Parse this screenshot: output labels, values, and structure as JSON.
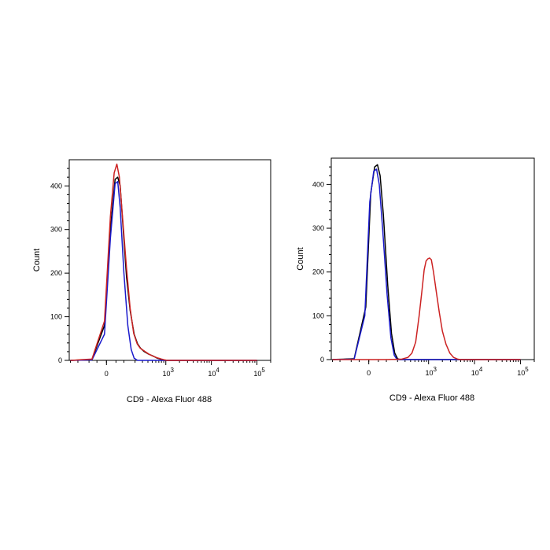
{
  "chart_data": [
    {
      "type": "line",
      "title": "",
      "xlabel": "CD9 - Alexa Fluor 488",
      "ylabel": "Count",
      "ylim": [
        0,
        460
      ],
      "yticks": [
        0,
        100,
        200,
        300,
        400
      ],
      "xscale": "biexponential",
      "xticks": [
        {
          "label": "0",
          "value": 0
        },
        {
          "label": "10",
          "sup": "3",
          "value": 1000
        },
        {
          "label": "10",
          "sup": "4",
          "value": 10000
        },
        {
          "label": "10",
          "sup": "5",
          "value": 100000
        }
      ],
      "series": [
        {
          "name": "black",
          "color": "#000000",
          "points": [
            [
              -300,
              0
            ],
            [
              -80,
              2
            ],
            [
              -10,
              80
            ],
            [
              20,
              300
            ],
            [
              45,
              415
            ],
            [
              60,
              420
            ],
            [
              75,
              400
            ],
            [
              95,
              300
            ],
            [
              120,
              190
            ],
            [
              150,
              115
            ],
            [
              190,
              60
            ],
            [
              230,
              38
            ],
            [
              270,
              28
            ],
            [
              330,
              20
            ],
            [
              420,
              14
            ],
            [
              520,
              10
            ],
            [
              650,
              5
            ],
            [
              800,
              2
            ],
            [
              950,
              0
            ],
            [
              100000,
              0
            ]
          ]
        },
        {
          "name": "blue",
          "color": "#1a1acc",
          "points": [
            [
              -300,
              0
            ],
            [
              -80,
              1
            ],
            [
              -10,
              60
            ],
            [
              20,
              280
            ],
            [
              45,
              405
            ],
            [
              60,
              410
            ],
            [
              75,
              350
            ],
            [
              100,
              200
            ],
            [
              130,
              80
            ],
            [
              160,
              25
            ],
            [
              190,
              5
            ],
            [
              230,
              0
            ],
            [
              100000,
              0
            ]
          ]
        },
        {
          "name": "red",
          "color": "#cc2222",
          "points": [
            [
              -300,
              0
            ],
            [
              -80,
              3
            ],
            [
              -10,
              90
            ],
            [
              20,
              330
            ],
            [
              40,
              430
            ],
            [
              55,
              450
            ],
            [
              70,
              420
            ],
            [
              90,
              330
            ],
            [
              120,
              210
            ],
            [
              150,
              120
            ],
            [
              185,
              62
            ],
            [
              225,
              38
            ],
            [
              265,
              28
            ],
            [
              325,
              22
            ],
            [
              410,
              15
            ],
            [
              510,
              10
            ],
            [
              640,
              6
            ],
            [
              800,
              3
            ],
            [
              950,
              1
            ],
            [
              1100,
              0
            ],
            [
              100000,
              0
            ]
          ]
        }
      ]
    },
    {
      "type": "line",
      "title": "",
      "xlabel": "CD9 - Alexa Fluor 488",
      "ylabel": "Count",
      "ylim": [
        0,
        460
      ],
      "yticks": [
        0,
        100,
        200,
        300,
        400
      ],
      "xscale": "biexponential",
      "xticks": [
        {
          "label": "0",
          "value": 0
        },
        {
          "label": "10",
          "sup": "3",
          "value": 1000
        },
        {
          "label": "10",
          "sup": "4",
          "value": 10000
        },
        {
          "label": "10",
          "sup": "5",
          "value": 100000
        }
      ],
      "series": [
        {
          "name": "black",
          "color": "#000000",
          "points": [
            [
              -300,
              0
            ],
            [
              -80,
              2
            ],
            [
              -15,
              120
            ],
            [
              10,
              380
            ],
            [
              30,
              440
            ],
            [
              45,
              445
            ],
            [
              60,
              420
            ],
            [
              80,
              330
            ],
            [
              110,
              170
            ],
            [
              140,
              60
            ],
            [
              170,
              15
            ],
            [
              200,
              2
            ],
            [
              230,
              0
            ],
            [
              100000,
              0
            ]
          ]
        },
        {
          "name": "blue",
          "color": "#1a1acc",
          "points": [
            [
              -300,
              0
            ],
            [
              -80,
              1
            ],
            [
              -20,
              100
            ],
            [
              5,
              360
            ],
            [
              25,
              430
            ],
            [
              40,
              435
            ],
            [
              55,
              400
            ],
            [
              75,
              300
            ],
            [
              105,
              150
            ],
            [
              135,
              50
            ],
            [
              165,
              10
            ],
            [
              195,
              0
            ],
            [
              100000,
              0
            ]
          ]
        },
        {
          "name": "red",
          "color": "#cc2222",
          "points": [
            [
              -300,
              0
            ],
            [
              100,
              0
            ],
            [
              250,
              1
            ],
            [
              350,
              5
            ],
            [
              430,
              15
            ],
            [
              520,
              40
            ],
            [
              620,
              100
            ],
            [
              720,
              160
            ],
            [
              800,
              205
            ],
            [
              880,
              225
            ],
            [
              960,
              230
            ],
            [
              1050,
              232
            ],
            [
              1150,
              228
            ],
            [
              1280,
              200
            ],
            [
              1450,
              160
            ],
            [
              1700,
              110
            ],
            [
              2000,
              65
            ],
            [
              2400,
              35
            ],
            [
              2900,
              15
            ],
            [
              3500,
              5
            ],
            [
              4300,
              1
            ],
            [
              5000,
              0
            ],
            [
              100000,
              0
            ]
          ]
        }
      ]
    }
  ]
}
